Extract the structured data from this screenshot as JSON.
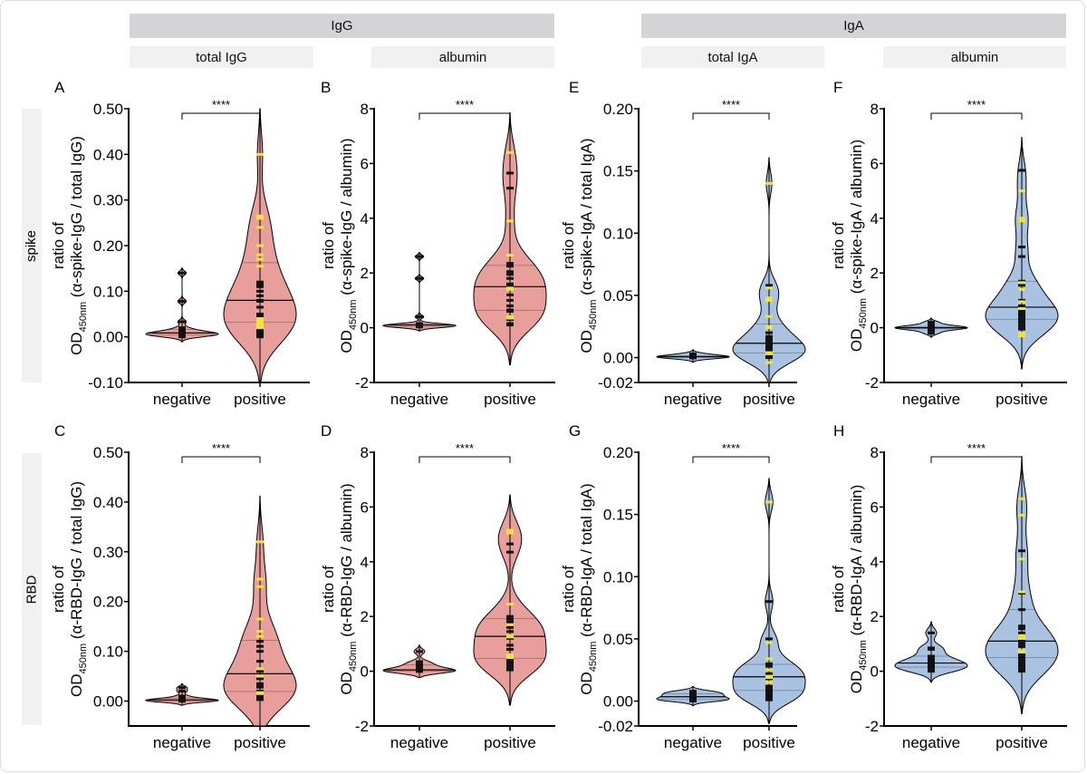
{
  "headers": [
    {
      "label": "IgG"
    },
    {
      "label": "IgA"
    }
  ],
  "subheaders": [
    {
      "label": "total IgG"
    },
    {
      "label": "albumin"
    },
    {
      "label": "total IgA"
    },
    {
      "label": "albumin"
    }
  ],
  "rows": [
    {
      "label": "spike"
    },
    {
      "label": "RBD"
    }
  ],
  "colors": {
    "IgG_fill": "#e89e9b",
    "IgA_fill": "#a9c2e2",
    "point_black": "#111111",
    "point_yellow": "#f2e33a",
    "header_bg": "#d4d4d6",
    "subheader_bg": "#f1f1f2"
  },
  "chart_data": [
    {
      "panel": "A",
      "type": "violin",
      "significance": "****",
      "ylabel_line1": "ratio of",
      "ylabel_od": "OD",
      "ylabel_sub": "450nm",
      "ylabel_line2": "(α-spike-IgG / total IgG)",
      "ylim": [
        -0.1,
        0.5
      ],
      "yticks": [
        "-0.10",
        "0.00",
        "0.10",
        "0.20",
        "0.30",
        "0.40",
        "0.50"
      ],
      "categories": [
        "negative",
        "positive"
      ],
      "fill": "IgG_fill",
      "groups": [
        {
          "black": [
            0.14,
            0.078,
            0.033,
            0.02,
            0.015,
            0.012,
            0.01,
            0.009,
            0.008,
            0.007,
            0.006,
            0.005,
            0.004,
            0.003,
            0.002,
            0.0
          ],
          "yellow": []
        },
        {
          "black": [
            0.12,
            0.115,
            0.11,
            0.1,
            0.09,
            0.08,
            0.078,
            0.065,
            0.05,
            0.045,
            0.015,
            0.01,
            0.005,
            0.0
          ],
          "yellow": [
            0.4,
            0.265,
            0.26,
            0.24,
            0.2,
            0.18,
            0.17,
            0.155,
            0.04,
            0.035,
            0.03,
            0.025,
            0.02
          ]
        }
      ]
    },
    {
      "panel": "B",
      "type": "violin",
      "significance": "****",
      "ylabel_line1": "ratio of",
      "ylabel_od": "OD",
      "ylabel_sub": "450nm",
      "ylabel_line2": "(α-spike-IgG / albumin)",
      "ylim": [
        -2,
        8
      ],
      "yticks": [
        "-2",
        "0",
        "2",
        "4",
        "6",
        "8"
      ],
      "categories": [
        "negative",
        "positive"
      ],
      "fill": "IgG_fill",
      "groups": [
        {
          "black": [
            2.6,
            1.8,
            0.4,
            0.15,
            0.12,
            0.1,
            0.1,
            0.08,
            0.06,
            0.05,
            0.05,
            0.04,
            0.03
          ],
          "yellow": []
        },
        {
          "black": [
            5.65,
            5.1,
            2.35,
            2.25,
            2.05,
            1.95,
            1.8,
            1.6,
            1.55,
            1.2,
            1.0,
            0.8,
            0.65,
            0.6,
            0.3,
            0.15,
            0.1
          ],
          "yellow": [
            6.4,
            3.9,
            2.65,
            1.45,
            1.4,
            0.4,
            0.35
          ]
        }
      ]
    },
    {
      "panel": "E",
      "type": "violin",
      "significance": "****",
      "ylabel_line1": "ratio of",
      "ylabel_od": "OD",
      "ylabel_sub": "450nm",
      "ylabel_line2": "(α-spike-IgA / total IgA)",
      "ylim": [
        -0.02,
        0.2
      ],
      "yticks": [
        "-0.02",
        "0.00",
        "0.05",
        "0.10",
        "0.15",
        "0.20"
      ],
      "categories": [
        "negative",
        "positive"
      ],
      "fill": "IgA_fill",
      "groups": [
        {
          "black": [
            0.003,
            0.002,
            0.001,
            0.001,
            0.0005,
            0.0,
            0.0,
            -0.0003
          ],
          "yellow": []
        },
        {
          "black": [
            0.058,
            0.02,
            0.017,
            0.015,
            0.013,
            0.01,
            0.009,
            0.008,
            0.007,
            0.005,
            0.003,
            0.002,
            0.001,
            0.0
          ],
          "yellow": [
            0.14,
            0.056,
            0.048,
            0.046,
            0.033,
            0.025,
            0.024,
            0.004,
            0.003,
            -0.004
          ]
        }
      ]
    },
    {
      "panel": "F",
      "type": "violin",
      "significance": "****",
      "ylabel_line1": "ratio of",
      "ylabel_od": "OD",
      "ylabel_sub": "450nm",
      "ylabel_line2": "(α-spike-IgA / albumin)",
      "ylim": [
        -2,
        8
      ],
      "yticks": [
        "-2",
        "0",
        "2",
        "4",
        "6",
        "8"
      ],
      "categories": [
        "negative",
        "positive"
      ],
      "fill": "IgA_fill",
      "groups": [
        {
          "black": [
            0.2,
            0.1,
            0.05,
            0.02,
            0.0,
            0.0,
            -0.02,
            -0.05,
            -0.1,
            -0.2
          ],
          "yellow": []
        },
        {
          "black": [
            5.75,
            2.95,
            2.6,
            1.7,
            1.55,
            1.0,
            0.8,
            0.65,
            0.6,
            0.5,
            0.45,
            0.35,
            0.3,
            0.2,
            0.1,
            0.0,
            -0.05
          ],
          "yellow": [
            5.0,
            4.0,
            3.9,
            1.65,
            1.4,
            0.95,
            0.7,
            -0.2,
            -0.3
          ]
        }
      ]
    },
    {
      "panel": "C",
      "type": "violin",
      "significance": "****",
      "ylabel_line1": "ratio of",
      "ylabel_od": "OD",
      "ylabel_sub": "450nm",
      "ylabel_line2": "(α-RBD-IgG / total IgG)",
      "ylim": [
        -0.05,
        0.5
      ],
      "yticks": [
        "0.00",
        "0.10",
        "0.20",
        "0.30",
        "0.40",
        "0.50"
      ],
      "categories": [
        "negative",
        "positive"
      ],
      "fill": "IgG_fill",
      "groups": [
        {
          "black": [
            0.027,
            0.02,
            0.01,
            0.005,
            0.004,
            0.003,
            0.002,
            0.001,
            0.0,
            0.0,
            0.0,
            0.0
          ],
          "yellow": []
        },
        {
          "black": [
            0.12,
            0.11,
            0.1,
            0.08,
            0.06,
            0.045,
            0.035,
            0.03,
            0.028,
            0.02,
            0.01,
            0.005,
            0.004,
            0.003
          ],
          "yellow": [
            0.32,
            0.245,
            0.23,
            0.165,
            0.14,
            0.13,
            0.065,
            0.05,
            0.017,
            0.015
          ]
        }
      ]
    },
    {
      "panel": "D",
      "type": "violin",
      "significance": "****",
      "ylabel_line1": "ratio of",
      "ylabel_od": "OD",
      "ylabel_sub": "450nm",
      "ylabel_line2": "(α-RBD-IgG / albumin)",
      "ylim": [
        -2,
        8
      ],
      "yticks": [
        "-2",
        "0",
        "2",
        "4",
        "6",
        "8"
      ],
      "categories": [
        "negative",
        "positive"
      ],
      "fill": "IgG_fill",
      "groups": [
        {
          "black": [
            0.72,
            0.35,
            0.25,
            0.2,
            0.1,
            0.05,
            0.02,
            0.0,
            0.0,
            0.0,
            0.0
          ],
          "yellow": []
        },
        {
          "black": [
            4.65,
            4.35,
            2.0,
            1.9,
            1.8,
            1.6,
            1.45,
            1.2,
            0.95,
            0.8,
            0.4,
            0.35,
            0.3,
            0.2,
            0.1,
            0.05
          ],
          "yellow": [
            5.15,
            5.05,
            2.45,
            1.7,
            1.3,
            1.25,
            0.6,
            0.5
          ]
        }
      ]
    },
    {
      "panel": "G",
      "type": "violin",
      "significance": "****",
      "ylabel_line1": "ratio of",
      "ylabel_od": "OD",
      "ylabel_sub": "450nm",
      "ylabel_line2": "(α-RBD-IgA / total IgA)",
      "ylim": [
        -0.02,
        0.2
      ],
      "yticks": [
        "-0.02",
        "0.00",
        "0.05",
        "0.10",
        "0.15",
        "0.20"
      ],
      "categories": [
        "negative",
        "positive"
      ],
      "fill": "IgA_fill",
      "groups": [
        {
          "black": [
            0.008,
            0.007,
            0.006,
            0.005,
            0.004,
            0.003,
            0.002,
            0.001,
            0.001,
            0.0
          ],
          "yellow": []
        },
        {
          "black": [
            0.08,
            0.05,
            0.03,
            0.028,
            0.025,
            0.022,
            0.018,
            0.012,
            0.01,
            0.008,
            0.006,
            0.004,
            0.003,
            0.002,
            0.001
          ],
          "yellow": [
            0.16,
            0.047,
            0.034,
            0.025,
            0.02,
            0.019,
            0.015
          ]
        }
      ]
    },
    {
      "panel": "H",
      "type": "violin",
      "significance": "****",
      "ylabel_line1": "ratio of",
      "ylabel_od": "OD",
      "ylabel_sub": "450nm",
      "ylabel_line2": "(α-RBD-IgA / albumin)",
      "ylim": [
        -2,
        8
      ],
      "yticks": [
        "-2",
        "0",
        "2",
        "4",
        "6",
        "8"
      ],
      "categories": [
        "negative",
        "positive"
      ],
      "fill": "IgA_fill",
      "groups": [
        {
          "black": [
            1.4,
            0.85,
            0.8,
            0.55,
            0.45,
            0.35,
            0.3,
            0.25,
            0.2,
            0.15,
            0.1,
            0.05,
            0.0
          ],
          "yellow": []
        },
        {
          "black": [
            4.4,
            2.85,
            2.25,
            1.65,
            1.55,
            1.4,
            1.1,
            1.0,
            0.9,
            0.6,
            0.5,
            0.4,
            0.3,
            0.2,
            0.1,
            0.05,
            0.0
          ],
          "yellow": [
            6.3,
            5.7,
            4.1,
            2.9,
            1.3,
            1.2,
            0.75,
            0.7
          ]
        }
      ]
    }
  ]
}
